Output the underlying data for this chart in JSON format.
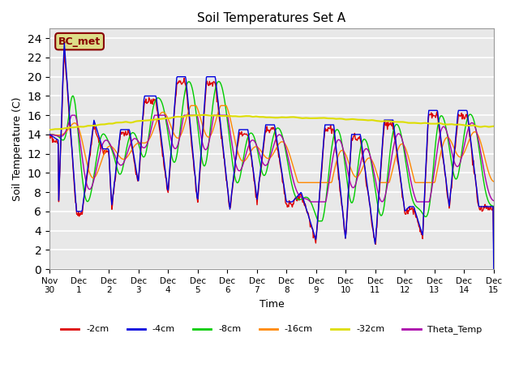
{
  "title": "Soil Temperatures Set A",
  "xlabel": "Time",
  "ylabel": "Soil Temperature (C)",
  "ylim": [
    0,
    25
  ],
  "yticks": [
    0,
    2,
    4,
    6,
    8,
    10,
    12,
    14,
    16,
    18,
    20,
    22,
    24
  ],
  "colors": {
    "-2cm": "#dd0000",
    "-4cm": "#0000dd",
    "-8cm": "#00cc00",
    "-16cm": "#ff8800",
    "-32cm": "#dddd00",
    "Theta_Temp": "#aa00aa"
  },
  "annotation_text": "BC_met",
  "annotation_color": "#880000",
  "annotation_bg": "#dddd88",
  "x_tick_labels": [
    "Nov 30",
    "Dec 1",
    "Dec 2",
    "Dec 3",
    "Dec 4",
    "Dec 5",
    "Dec 6",
    "Dec 7",
    "Dec 8",
    "Dec 9",
    "Dec 10",
    "Dec 11",
    "Dec 12",
    "Dec 13",
    "Dec 14",
    "Dec 15"
  ],
  "num_points": 720
}
